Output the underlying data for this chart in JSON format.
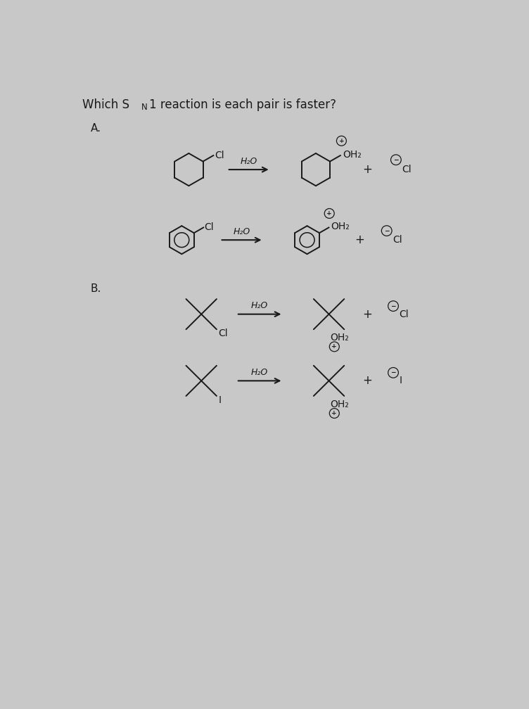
{
  "background_color": "#c8c8c8",
  "text_color": "#1a1a1a",
  "section_A_label": "A.",
  "section_B_label": "B.",
  "h2o": "H₂O",
  "plus": "+",
  "lw": 1.4,
  "fs": 10,
  "r_hex": 0.3,
  "r_benz": 0.26,
  "sc": 0.28
}
